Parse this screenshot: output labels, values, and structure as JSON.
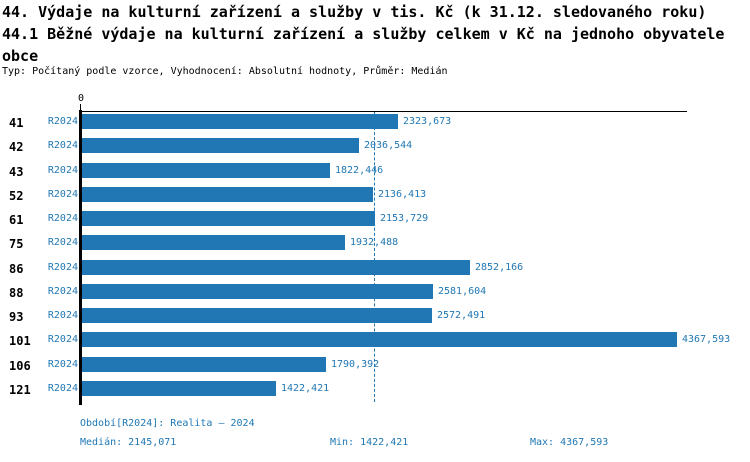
{
  "header": {
    "title_line1": "44. Výdaje na kulturní zařízení a služby v tis. Kč (k 31.12. sledovaného roku)",
    "title_line2": "44.1 Běžné výdaje na kulturní zařízení a služby celkem v Kč na jednoho obyvatele",
    "title_line3": "obce",
    "subtitle": "Typ: Počítaný podle vzorce, Vyhodnocení: Absolutní hodnoty, Průměr: Medián"
  },
  "chart_data": {
    "type": "bar",
    "orientation": "horizontal",
    "title": "44.1 Běžné výdaje na kulturní zařízení a služby celkem v Kč na jednoho obyvatele obce",
    "categories": [
      "41",
      "42",
      "43",
      "52",
      "61",
      "75",
      "86",
      "88",
      "93",
      "101",
      "106",
      "121"
    ],
    "series": [
      {
        "name": "R2024",
        "values": [
          2323.673,
          2036.544,
          1822.446,
          2136.413,
          2153.729,
          1932.488,
          2852.166,
          2581.604,
          2572.491,
          4367.593,
          1790.392,
          1422.421
        ]
      }
    ],
    "value_labels": [
      "2323,673",
      "2036,544",
      "1822,446",
      "2136,413",
      "2153,729",
      "1932,488",
      "2852,166",
      "2581,604",
      "2572,491",
      "4367,593",
      "1790,392",
      "1422,421"
    ],
    "x_axis": {
      "zero_label": "0",
      "min": 0
    },
    "median": 2145.071,
    "min": 1422.421,
    "max": 4367.593,
    "grid": false,
    "legend_position": "none",
    "colors": {
      "bar": "#2077b4",
      "accent_text": "#1f77b4",
      "axis": "#000000",
      "median_line": "#2077b4"
    }
  },
  "footer": {
    "period": "Období[R2024]: Realita – 2024",
    "median_label": "Medián: 2145,071",
    "min_label": "Min: 1422,421",
    "max_label": "Max: 4367,593"
  }
}
